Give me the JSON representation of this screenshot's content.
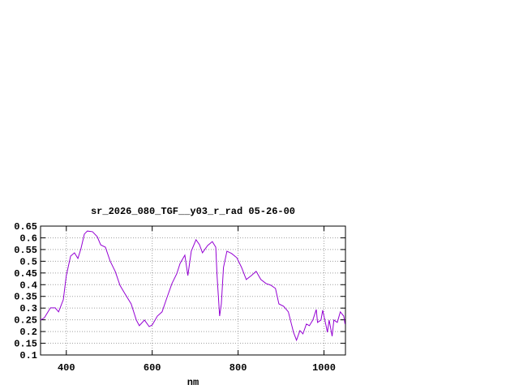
{
  "chart_data": {
    "type": "line",
    "title": "sr_2026_080_TGF__y03_r_rad 05-26-00",
    "x_label": "nm",
    "x": [
      340,
      349,
      363,
      374,
      382,
      393,
      400,
      410,
      419,
      427,
      434,
      442,
      449,
      461,
      472,
      480,
      491,
      502,
      514,
      525,
      536,
      551,
      563,
      570,
      582,
      593,
      600,
      612,
      623,
      634,
      646,
      657,
      665,
      676,
      683,
      691,
      702,
      710,
      717,
      729,
      740,
      748,
      751,
      757,
      761,
      766,
      774,
      785,
      797,
      808,
      819,
      831,
      842,
      853,
      865,
      876,
      887,
      895,
      906,
      917,
      929,
      936,
      944,
      951,
      959,
      966,
      974,
      982,
      985,
      993,
      997,
      1004,
      1008,
      1012,
      1019,
      1023,
      1031,
      1038,
      1046,
      1049
    ],
    "values": [
      0.249,
      0.259,
      0.301,
      0.301,
      0.284,
      0.336,
      0.439,
      0.522,
      0.536,
      0.512,
      0.553,
      0.616,
      0.629,
      0.626,
      0.605,
      0.57,
      0.56,
      0.501,
      0.456,
      0.397,
      0.363,
      0.318,
      0.249,
      0.225,
      0.249,
      0.221,
      0.228,
      0.266,
      0.284,
      0.343,
      0.405,
      0.446,
      0.491,
      0.526,
      0.439,
      0.543,
      0.592,
      0.571,
      0.536,
      0.567,
      0.584,
      0.56,
      0.439,
      0.266,
      0.318,
      0.474,
      0.543,
      0.533,
      0.515,
      0.474,
      0.422,
      0.439,
      0.457,
      0.422,
      0.405,
      0.398,
      0.384,
      0.318,
      0.308,
      0.284,
      0.197,
      0.163,
      0.204,
      0.19,
      0.232,
      0.225,
      0.249,
      0.294,
      0.239,
      0.249,
      0.291,
      0.232,
      0.197,
      0.249,
      0.18,
      0.249,
      0.239,
      0.284,
      0.266,
      0.232
    ],
    "color": "#9400d3",
    "xlim": [
      340,
      1050
    ],
    "ylim": [
      0.1,
      0.65
    ],
    "xticks": [
      400,
      600,
      800,
      1000
    ],
    "yticks": [
      0.1,
      0.15,
      0.2,
      0.25,
      0.3,
      0.35,
      0.4,
      0.45,
      0.5,
      0.55,
      0.6,
      0.65
    ],
    "grid": true
  }
}
